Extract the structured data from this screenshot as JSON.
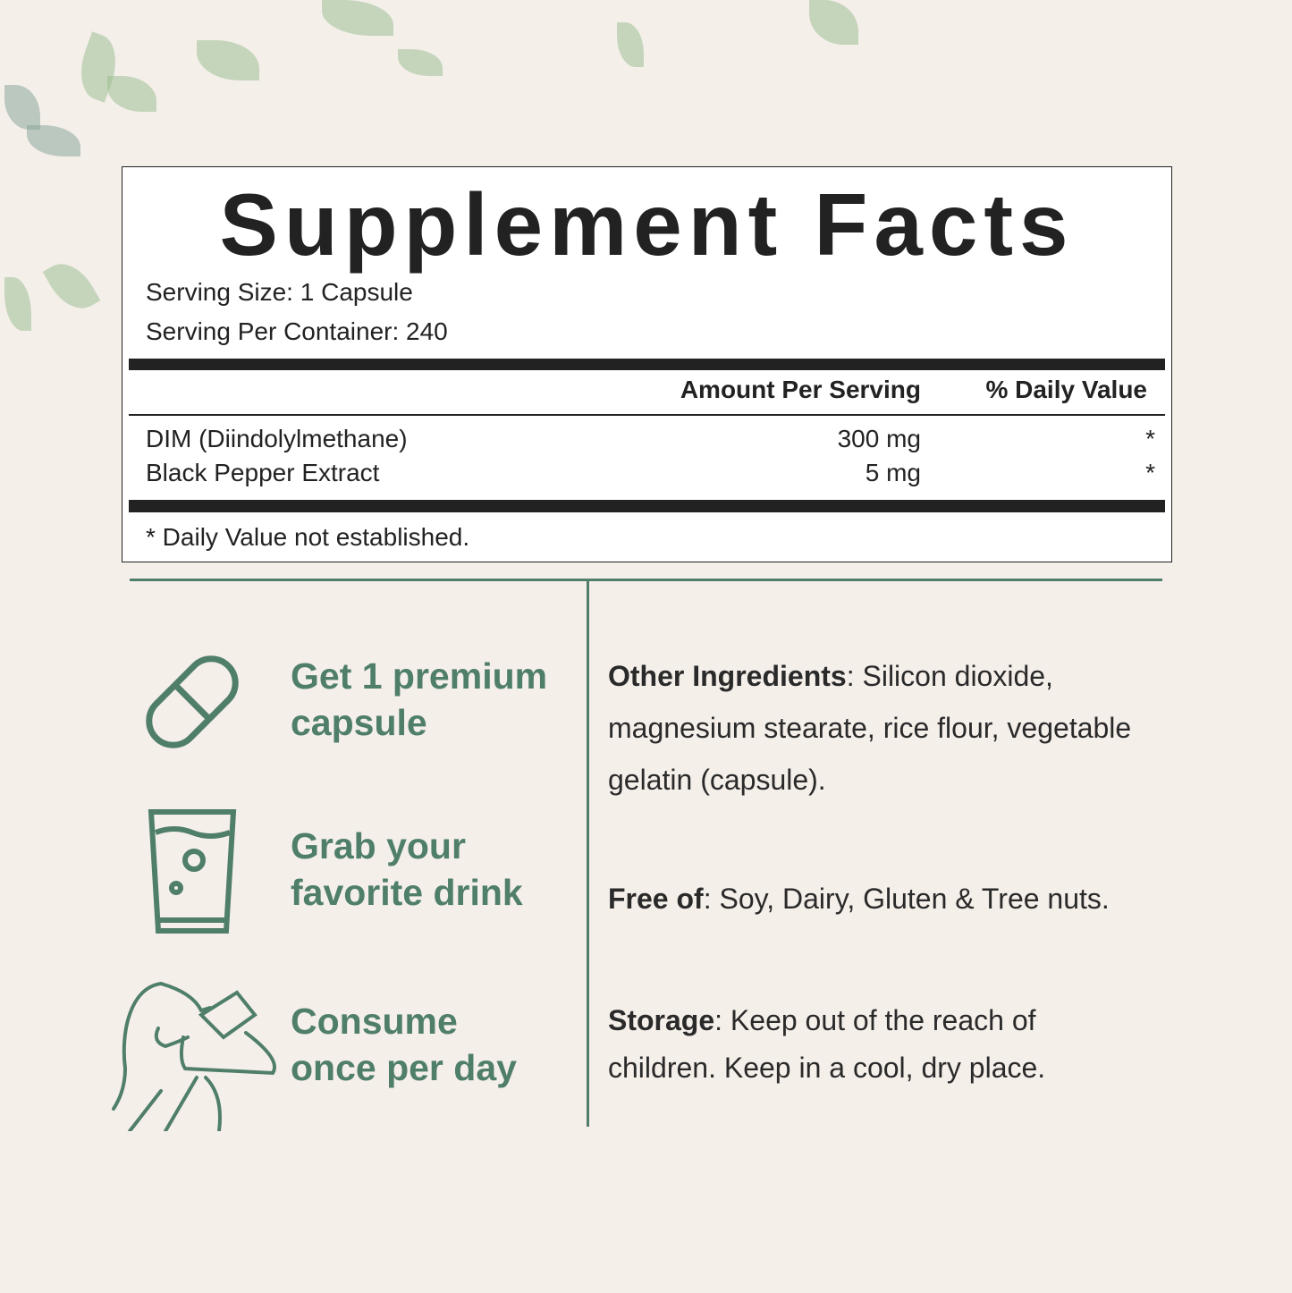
{
  "label": {
    "title": "Supplement Facts",
    "serving_size": "Serving Size: 1 Capsule",
    "servings_per_container": "Serving Per Container: 240",
    "header": {
      "amount": "Amount Per Serving",
      "daily_value": "% Daily Value"
    },
    "rows": [
      {
        "name": "DIM (Diindolylmethane)",
        "amount": "300 mg",
        "dv": "*"
      },
      {
        "name": "Black Pepper Extract",
        "amount": "5 mg",
        "dv": "*"
      }
    ],
    "footnote": "* Daily Value not established."
  },
  "steps": [
    {
      "icon": "capsule-icon",
      "line1": "Get 1 premium",
      "line2": "capsule"
    },
    {
      "icon": "glass-icon",
      "line1": "Grab your",
      "line2": "favorite drink"
    },
    {
      "icon": "woman-drinking-icon",
      "line1": "Consume",
      "line2": "once per day"
    }
  ],
  "info": {
    "other_label": "Other Ingredients",
    "other_text": ": Silicon dioxide, magnesium stearate, rice flour, vegetable gelatin (capsule).",
    "free_label": "Free of",
    "free_text": ": Soy, Dairy, Gluten & Tree nuts.",
    "storage_label": "Storage",
    "storage_text": ": Keep out of the reach of children. Keep in a cool, dry place."
  },
  "colors": {
    "accent": "#4f7f68",
    "background": "#f5efea",
    "text": "#222222"
  }
}
